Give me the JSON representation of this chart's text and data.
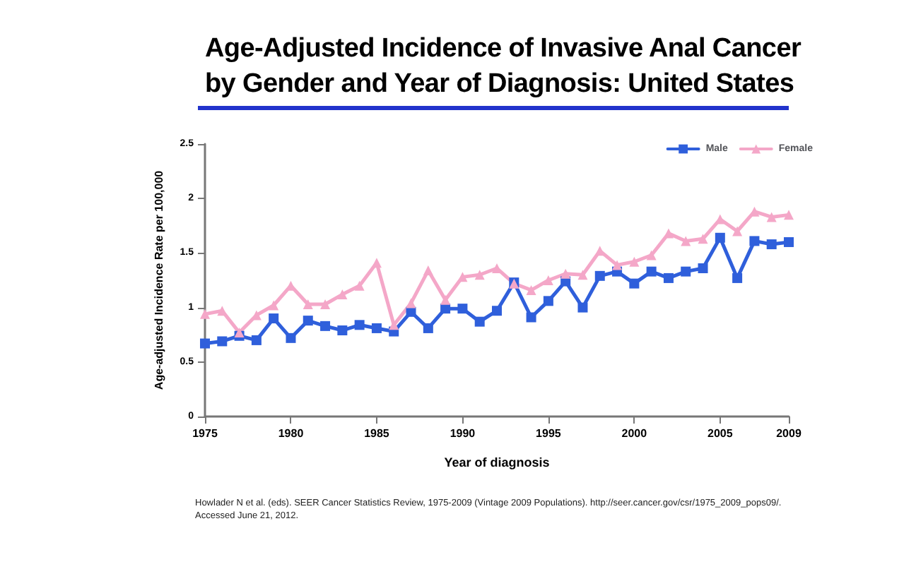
{
  "chart_data": {
    "type": "line",
    "title": "Age-Adjusted Incidence of Invasive Anal Cancer\nby Gender and Year of Diagnosis: United States",
    "xlabel": "Year of diagnosis",
    "ylabel": "Age-adjusted Incidence Rate per 100,000",
    "x": [
      1975,
      1976,
      1977,
      1978,
      1979,
      1980,
      1981,
      1982,
      1983,
      1984,
      1985,
      1986,
      1987,
      1988,
      1989,
      1990,
      1991,
      1992,
      1993,
      1994,
      1995,
      1996,
      1997,
      1998,
      1999,
      2000,
      2001,
      2002,
      2003,
      2004,
      2005,
      2006,
      2007,
      2008,
      2009
    ],
    "series": [
      {
        "name": "Male",
        "color": "#2f5fdb",
        "marker": "square",
        "values": [
          0.67,
          0.69,
          0.74,
          0.7,
          0.9,
          0.72,
          0.88,
          0.83,
          0.79,
          0.84,
          0.81,
          0.78,
          0.96,
          0.81,
          0.99,
          0.99,
          0.87,
          0.97,
          1.23,
          0.91,
          1.06,
          1.24,
          1.0,
          1.29,
          1.33,
          1.22,
          1.33,
          1.27,
          1.33,
          1.36,
          1.64,
          1.27,
          1.61,
          1.58,
          1.6
        ]
      },
      {
        "name": "Female",
        "color": "#f4a7c8",
        "marker": "triangle",
        "values": [
          0.94,
          0.97,
          0.77,
          0.93,
          1.02,
          1.2,
          1.03,
          1.03,
          1.12,
          1.2,
          1.41,
          0.84,
          1.04,
          1.34,
          1.07,
          1.28,
          1.3,
          1.36,
          1.22,
          1.16,
          1.25,
          1.31,
          1.3,
          1.52,
          1.39,
          1.42,
          1.48,
          1.68,
          1.61,
          1.63,
          1.81,
          1.7,
          1.88,
          1.83,
          1.85
        ]
      }
    ],
    "xlim": [
      1975,
      2009
    ],
    "xticks": [
      1975,
      1980,
      1985,
      1990,
      1995,
      2000,
      2005,
      2009
    ],
    "ylim": [
      0,
      2.5
    ],
    "yticks": [
      0,
      0.5,
      1,
      1.5,
      2,
      2.5
    ],
    "grid": false,
    "legend": "top right",
    "line_style": "solid",
    "annotations": [
      "Howlader N et al. (eds). SEER Cancer Statistics Review, 1975-2009 (Vintage 2009 Populations). http://seer.cancer.gov/csr/1975_2009_pops09/.",
      "Accessed June 21, 2012."
    ]
  }
}
